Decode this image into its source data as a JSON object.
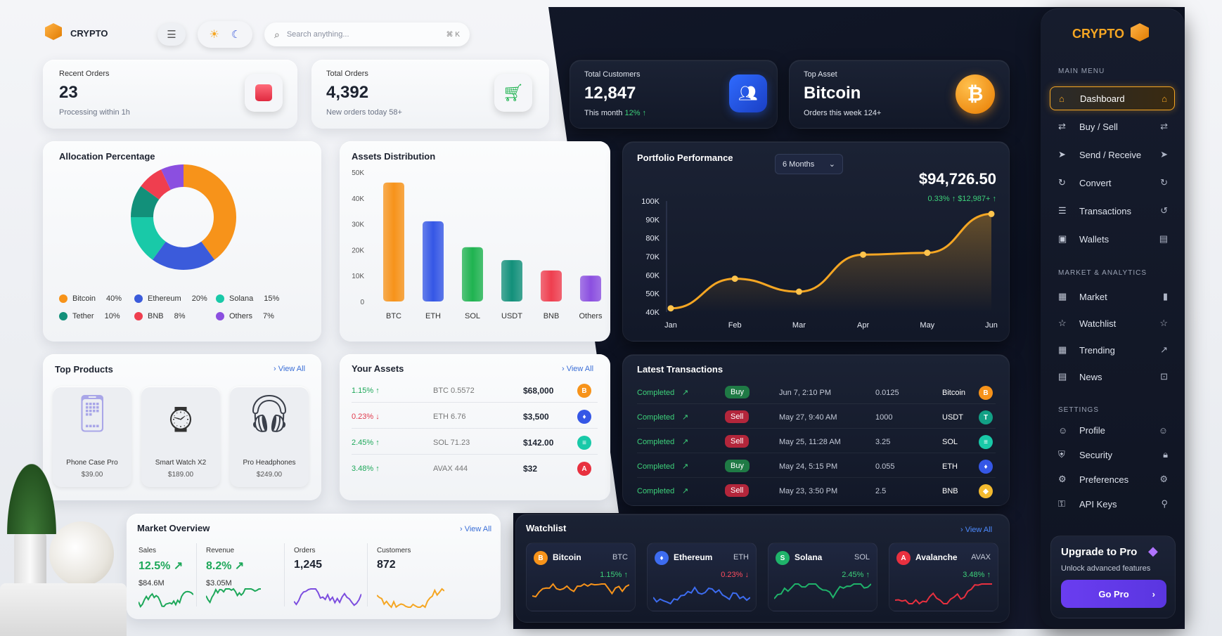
{
  "app": {
    "name": "CRYPTO",
    "search_placeholder": "Search anything...",
    "search_shortcut": "⌘ K"
  },
  "stats": [
    {
      "label": "Recent Orders",
      "value": "23",
      "sub": "Processing within 1h"
    },
    {
      "label": "Total Orders",
      "value": "4,392",
      "sub": "New orders today 58+"
    },
    {
      "label": "Total Customers",
      "value": "12,847",
      "sub_prefix": "This month",
      "sub_change": "12% ↑"
    },
    {
      "label": "Top Asset",
      "value": "Bitcoin",
      "sub": "Orders this week 124+"
    }
  ],
  "allocation": {
    "title": "Allocation Percentage",
    "items": [
      {
        "name": "Bitcoin",
        "pct": "40%",
        "value": 40,
        "color": "#f7931a"
      },
      {
        "name": "Ethereum",
        "pct": "20%",
        "value": 20,
        "color": "#3b5bdb"
      },
      {
        "name": "Solana",
        "pct": "15%",
        "value": 15,
        "color": "#19c9a8"
      },
      {
        "name": "Tether",
        "pct": "10%",
        "value": 10,
        "color": "#12907a"
      },
      {
        "name": "BNB",
        "pct": "8%",
        "value": 8,
        "color": "#ef3e4f"
      },
      {
        "name": "Others",
        "pct": "7%",
        "value": 7,
        "color": "#8b4fe0"
      }
    ]
  },
  "chart_data": [
    {
      "type": "bar",
      "title": "Assets Distribution",
      "categories": [
        "BTC",
        "ETH",
        "SOL",
        "USDT",
        "BNB",
        "Others"
      ],
      "values": [
        46000,
        31000,
        21000,
        16000,
        12000,
        10000
      ],
      "colors": [
        "#f7931a",
        "#3557e6",
        "#1fb350",
        "#12907a",
        "#ef3e4f",
        "#8b4fe0"
      ],
      "yticks": [
        "50K",
        "40K",
        "30K",
        "20K",
        "10K",
        "0"
      ],
      "ylim": [
        0,
        50000
      ]
    },
    {
      "type": "line",
      "title": "Portfolio Performance",
      "categories": [
        "Jan",
        "Feb",
        "Mar",
        "Apr",
        "May",
        "Jun"
      ],
      "values": [
        42000,
        58000,
        51000,
        71000,
        72000,
        93000
      ],
      "yticks": [
        "100K",
        "90K",
        "80K",
        "70K",
        "60K",
        "50K",
        "40K"
      ],
      "ylim": [
        40000,
        100000
      ],
      "period": "6 Months",
      "total": "$94,726.50",
      "change": "0.33% ↑ $12,987+ ↑",
      "color": "#f5a623"
    }
  ],
  "top_products": {
    "title": "Top Products",
    "view_all": "› View All",
    "items": [
      {
        "name": "Phone Case Pro",
        "price": "$39.00"
      },
      {
        "name": "Smart Watch X2",
        "price": "$189.00"
      },
      {
        "name": "Pro Headphones",
        "price": "$249.00"
      }
    ]
  },
  "your_assets": {
    "title": "Your Assets",
    "view_all": "› View All",
    "rows": [
      {
        "change": "1.15% ↑",
        "dir": "up",
        "amount": "BTC 0.5572",
        "value": "$68,000",
        "coin": "B",
        "color": "#f7931a"
      },
      {
        "change": "0.23% ↓",
        "dir": "down",
        "amount": "ETH 6.76",
        "value": "$3,500",
        "coin": "♦",
        "color": "#3557e6"
      },
      {
        "change": "2.45% ↑",
        "dir": "up",
        "amount": "SOL 71.23",
        "value": "$142.00",
        "coin": "≡",
        "color": "#19c9a8"
      },
      {
        "change": "3.48% ↑",
        "dir": "up",
        "amount": "AVAX 444",
        "value": "$32",
        "coin": "A",
        "color": "#e8303f"
      }
    ]
  },
  "transactions": {
    "title": "Latest Transactions",
    "rows": [
      {
        "status": "Completed",
        "type": "Buy",
        "date": "Jun 7, 2:10 PM",
        "amount": "0.0125",
        "asset": "Bitcoin",
        "coin": "B",
        "color": "#f7931a"
      },
      {
        "status": "Completed",
        "type": "Sell",
        "date": "May 27, 9:40 AM",
        "amount": "1000",
        "asset": "USDT",
        "coin": "T",
        "color": "#12a085"
      },
      {
        "status": "Completed",
        "type": "Sell",
        "date": "May 25, 11:28 AM",
        "amount": "3.25",
        "asset": "SOL",
        "coin": "≡",
        "color": "#19c9a8"
      },
      {
        "status": "Completed",
        "type": "Buy",
        "date": "May 24, 5:15 PM",
        "amount": "0.055",
        "asset": "ETH",
        "coin": "♦",
        "color": "#3557e6"
      },
      {
        "status": "Completed",
        "type": "Sell",
        "date": "May 23, 3:50 PM",
        "amount": "2.5",
        "asset": "BNB",
        "coin": "◆",
        "color": "#f3ba2f"
      }
    ]
  },
  "market_overview": {
    "title": "Market Overview",
    "view_all": "› View All",
    "items": [
      {
        "label": "Sales",
        "value": "12.5% ↗",
        "sub": "$84.6M",
        "color": "#1ea85a"
      },
      {
        "label": "Revenue",
        "value": "8.2% ↗",
        "sub": "$3.05M",
        "color": "#1ea85a"
      },
      {
        "label": "Orders",
        "value": "1,245",
        "sub": "",
        "color": "#7c4ddf"
      },
      {
        "label": "Customers",
        "value": "872",
        "sub": "",
        "color": "#f5a623"
      }
    ]
  },
  "watchlist": {
    "title": "Watchlist",
    "view_all": "› View All",
    "items": [
      {
        "name": "Bitcoin",
        "sym": "BTC",
        "change": "1.15% ↑",
        "dir": "up",
        "coin": "B",
        "color": "#f7931a"
      },
      {
        "name": "Ethereum",
        "sym": "ETH",
        "change": "0.23% ↓",
        "dir": "down",
        "coin": "♦",
        "color": "#3d6cf0"
      },
      {
        "name": "Solana",
        "sym": "SOL",
        "change": "2.45% ↑",
        "dir": "up",
        "coin": "S",
        "color": "#1fb36a"
      },
      {
        "name": "Avalanche",
        "sym": "AVAX",
        "change": "3.48% ↑",
        "dir": "up",
        "coin": "A",
        "color": "#e8303f"
      }
    ]
  },
  "sidebar": {
    "brand": "CRYPTO",
    "main_menu": "MAIN MENU",
    "main_items": [
      "Dashboard",
      "Buy / Sell",
      "Send / Receive",
      "Convert",
      "Transactions",
      "Wallets"
    ],
    "market_head": "MARKET & ANALYTICS",
    "market_items": [
      "Market",
      "Watchlist",
      "Trending",
      "News"
    ],
    "settings_head": "SETTINGS",
    "settings_items": [
      "Profile",
      "Security",
      "Preferences",
      "API Keys"
    ],
    "upgrade_title": "Upgrade to Pro",
    "upgrade_sub": "Unlock advanced features",
    "upgrade_button": "Go Pro"
  }
}
